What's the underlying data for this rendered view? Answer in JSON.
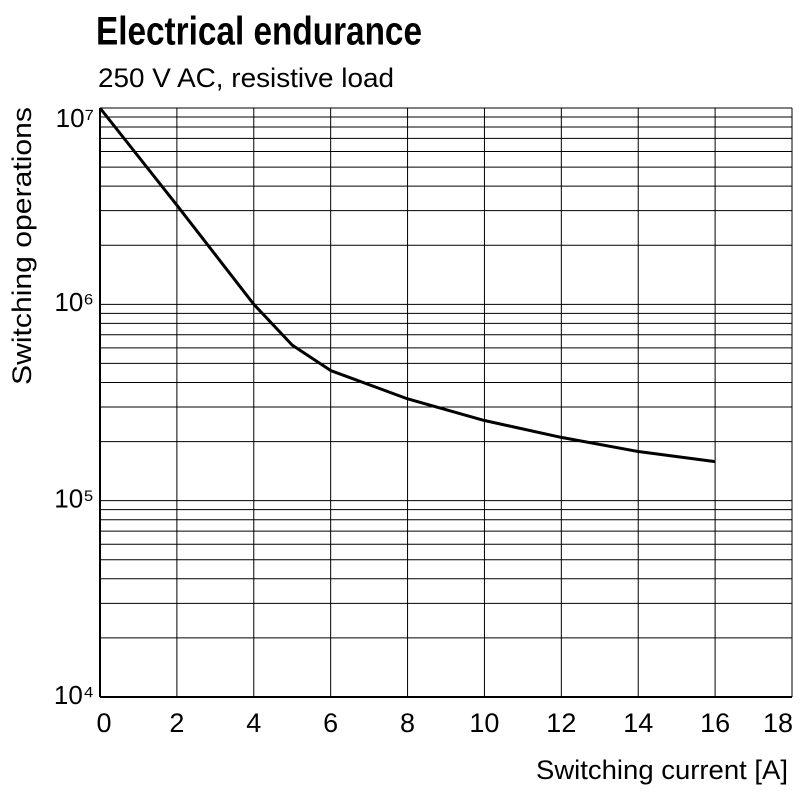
{
  "chart_data": {
    "type": "line",
    "title": "Electrical endurance",
    "subtitle": "250 V AC, resistive load",
    "x_label": "Switching current [A]",
    "y_label": "Switching operations",
    "x": [
      0,
      2,
      4,
      5,
      6,
      8,
      10,
      12,
      14,
      16
    ],
    "series": [
      {
        "name": "250 V AC, resistive load",
        "color": "#000000",
        "values": [
          10000000,
          3200000,
          1000000,
          620000,
          460000,
          330000,
          256000,
          210000,
          178000,
          158000
        ]
      }
    ],
    "xlim": [
      0,
      18
    ],
    "xticks": [
      0,
      2,
      4,
      6,
      8,
      10,
      12,
      14,
      16,
      18
    ],
    "ylim": [
      10000,
      10000000
    ],
    "log_y": true,
    "yticks": [
      {
        "value": 10000,
        "label": "10⁴"
      },
      {
        "value": 100000,
        "label": "10⁵"
      },
      {
        "value": 1000000,
        "label": "10⁶"
      },
      {
        "value": 10000000,
        "label": "10⁷"
      }
    ],
    "y_minor_ticks": [
      20000,
      30000,
      40000,
      50000,
      60000,
      70000,
      80000,
      90000,
      200000,
      300000,
      400000,
      500000,
      600000,
      700000,
      800000,
      900000,
      2000000,
      3000000,
      4000000,
      5000000,
      6000000,
      7000000,
      8000000,
      9000000
    ],
    "grid": true
  }
}
